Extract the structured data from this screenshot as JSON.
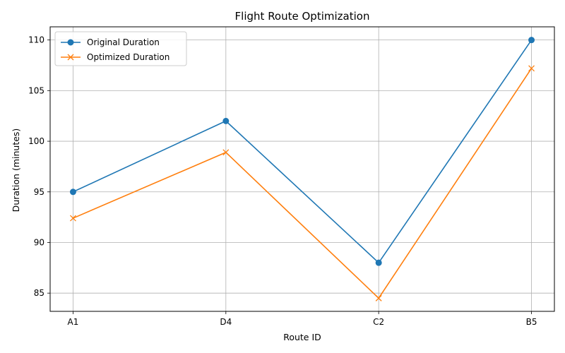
{
  "chart_data": {
    "type": "line",
    "title": "Flight Route Optimization",
    "xlabel": "Route ID",
    "ylabel": "Duration (minutes)",
    "categories": [
      "A1",
      "D4",
      "C2",
      "B5"
    ],
    "ylim": [
      83.2,
      111.3
    ],
    "yticks": [
      85,
      90,
      95,
      100,
      105,
      110
    ],
    "grid": true,
    "legend_position": "top-left",
    "series": [
      {
        "name": "Original Duration",
        "values": [
          95,
          102,
          88,
          110
        ],
        "color": "#1f77b4",
        "marker": "circle"
      },
      {
        "name": "Optimized Duration",
        "values": [
          92.4,
          98.9,
          84.5,
          107.2
        ],
        "color": "#ff7f0e",
        "marker": "x"
      }
    ]
  }
}
